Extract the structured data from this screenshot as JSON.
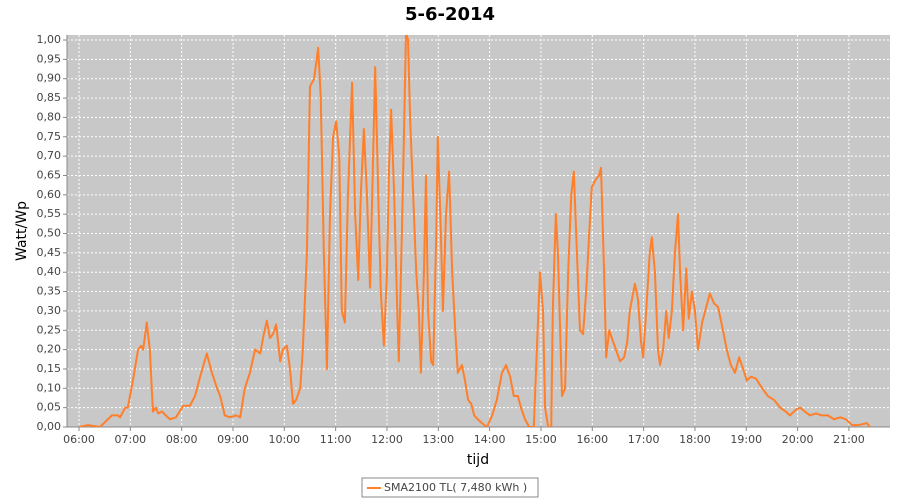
{
  "chart_data": {
    "type": "line",
    "title": "5-6-2014",
    "x_label": "tijd",
    "y_label": "Watt/Wp",
    "grid": true,
    "xlim": [
      5.766,
      21.8
    ],
    "ylim": [
      0,
      1.013
    ],
    "xticks": [
      {
        "value": 6,
        "label": "06:00"
      },
      {
        "value": 7,
        "label": "07:00"
      },
      {
        "value": 8,
        "label": "08:00"
      },
      {
        "value": 9,
        "label": "09:00"
      },
      {
        "value": 10,
        "label": "10:00"
      },
      {
        "value": 11,
        "label": "11:00"
      },
      {
        "value": 12,
        "label": "12:00"
      },
      {
        "value": 13,
        "label": "13:00"
      },
      {
        "value": 14,
        "label": "14:00"
      },
      {
        "value": 15,
        "label": "15:00"
      },
      {
        "value": 16,
        "label": "16:00"
      },
      {
        "value": 17,
        "label": "17:00"
      },
      {
        "value": 18,
        "label": "18:00"
      },
      {
        "value": 19,
        "label": "19:00"
      },
      {
        "value": 20,
        "label": "20:00"
      },
      {
        "value": 21,
        "label": "21:00"
      }
    ],
    "yticks": [
      {
        "value": 0,
        "label": "0,00"
      },
      {
        "value": 0.05,
        "label": "0,05"
      },
      {
        "value": 0.1,
        "label": "0,10"
      },
      {
        "value": 0.15,
        "label": "0,15"
      },
      {
        "value": 0.2,
        "label": "0,20"
      },
      {
        "value": 0.25,
        "label": "0,25"
      },
      {
        "value": 0.3,
        "label": "0,30"
      },
      {
        "value": 0.35,
        "label": "0,35"
      },
      {
        "value": 0.4,
        "label": "0,40"
      },
      {
        "value": 0.45,
        "label": "0,45"
      },
      {
        "value": 0.5,
        "label": "0,50"
      },
      {
        "value": 0.55,
        "label": "0,55"
      },
      {
        "value": 0.6,
        "label": "0,60"
      },
      {
        "value": 0.65,
        "label": "0,65"
      },
      {
        "value": 0.7,
        "label": "0,70"
      },
      {
        "value": 0.75,
        "label": "0,75"
      },
      {
        "value": 0.8,
        "label": "0,80"
      },
      {
        "value": 0.85,
        "label": "0,85"
      },
      {
        "value": 0.9,
        "label": "0,90"
      },
      {
        "value": 0.95,
        "label": "0,95"
      },
      {
        "value": 1,
        "label": "1,00"
      }
    ],
    "x": [
      6.0,
      6.18,
      6.41,
      6.64,
      6.76,
      6.8,
      6.9,
      6.95,
      7.05,
      7.15,
      7.21,
      7.25,
      7.32,
      7.38,
      7.44,
      7.5,
      7.54,
      7.62,
      7.69,
      7.77,
      7.89,
      8.03,
      8.16,
      8.26,
      8.36,
      8.49,
      8.59,
      8.69,
      8.75,
      8.84,
      8.94,
      9.06,
      9.14,
      9.23,
      9.33,
      9.43,
      9.53,
      9.6,
      9.66,
      9.72,
      9.78,
      9.84,
      9.92,
      9.97,
      10.05,
      10.11,
      10.17,
      10.23,
      10.31,
      10.36,
      10.44,
      10.5,
      10.58,
      10.66,
      10.71,
      10.77,
      10.83,
      10.89,
      10.95,
      11.01,
      11.07,
      11.12,
      11.18,
      11.24,
      11.32,
      11.38,
      11.44,
      11.49,
      11.55,
      11.61,
      11.67,
      11.73,
      11.77,
      11.83,
      11.88,
      11.94,
      12.0,
      12.04,
      12.08,
      12.14,
      12.2,
      12.23,
      12.29,
      12.33,
      12.37,
      12.41,
      12.45,
      12.51,
      12.57,
      12.62,
      12.66,
      12.72,
      12.76,
      12.8,
      12.86,
      12.9,
      12.96,
      12.99,
      13.05,
      13.09,
      13.15,
      13.21,
      13.27,
      13.33,
      13.38,
      13.46,
      13.52,
      13.58,
      13.64,
      13.7,
      13.77,
      13.85,
      13.95,
      14.05,
      14.14,
      14.24,
      14.32,
      14.4,
      14.47,
      14.55,
      14.61,
      14.69,
      14.77,
      14.86,
      14.92,
      14.98,
      15.04,
      15.08,
      15.14,
      15.2,
      15.23,
      15.29,
      15.33,
      15.41,
      15.47,
      15.53,
      15.59,
      15.64,
      15.7,
      15.76,
      15.82,
      15.88,
      15.94,
      15.99,
      16.07,
      16.13,
      16.17,
      16.23,
      16.27,
      16.33,
      16.38,
      16.46,
      16.54,
      16.62,
      16.68,
      16.73,
      16.83,
      16.89,
      16.95,
      16.99,
      17.05,
      17.12,
      17.16,
      17.22,
      17.28,
      17.32,
      17.38,
      17.44,
      17.49,
      17.55,
      17.61,
      17.67,
      17.71,
      17.77,
      17.83,
      17.88,
      17.94,
      18.0,
      18.06,
      18.14,
      18.2,
      18.29,
      18.37,
      18.45,
      18.53,
      18.62,
      18.7,
      18.78,
      18.86,
      18.94,
      19.01,
      19.09,
      19.19,
      19.31,
      19.42,
      19.54,
      19.66,
      19.77,
      19.85,
      19.97,
      20.05,
      20.14,
      20.24,
      20.36,
      20.47,
      20.59,
      20.71,
      20.83,
      20.94,
      21.06,
      21.18,
      21.29,
      21.35,
      21.41
    ],
    "series": [
      {
        "name": "SMA2100 TL( 7,480 kWh )",
        "color": "#ff7f2a",
        "values": [
          0,
          0.005,
          0,
          0.03,
          0.03,
          0.025,
          0.05,
          0.05,
          0.12,
          0.2,
          0.21,
          0.2,
          0.27,
          0.2,
          0.04,
          0.05,
          0.035,
          0.04,
          0.03,
          0.02,
          0.025,
          0.055,
          0.055,
          0.08,
          0.13,
          0.19,
          0.14,
          0.1,
          0.08,
          0.03,
          0.025,
          0.03,
          0.025,
          0.1,
          0.14,
          0.2,
          0.19,
          0.24,
          0.275,
          0.23,
          0.24,
          0.265,
          0.17,
          0.2,
          0.21,
          0.15,
          0.06,
          0.07,
          0.1,
          0.2,
          0.45,
          0.88,
          0.9,
          0.98,
          0.85,
          0.45,
          0.15,
          0.55,
          0.75,
          0.79,
          0.7,
          0.3,
          0.27,
          0.6,
          0.89,
          0.55,
          0.38,
          0.6,
          0.77,
          0.6,
          0.36,
          0.7,
          0.93,
          0.6,
          0.35,
          0.21,
          0.4,
          0.67,
          0.82,
          0.6,
          0.3,
          0.17,
          0.5,
          0.75,
          1.02,
          1.0,
          0.8,
          0.6,
          0.4,
          0.3,
          0.14,
          0.4,
          0.65,
          0.3,
          0.17,
          0.16,
          0.5,
          0.75,
          0.5,
          0.3,
          0.55,
          0.66,
          0.4,
          0.25,
          0.14,
          0.16,
          0.12,
          0.07,
          0.06,
          0.03,
          0.02,
          0.01,
          0,
          0.03,
          0.07,
          0.14,
          0.16,
          0.13,
          0.08,
          0.08,
          0.05,
          0.02,
          0,
          0,
          0.2,
          0.4,
          0.3,
          0.05,
          0,
          0,
          0.3,
          0.55,
          0.45,
          0.08,
          0.1,
          0.4,
          0.6,
          0.66,
          0.45,
          0.25,
          0.24,
          0.35,
          0.5,
          0.62,
          0.64,
          0.65,
          0.67,
          0.4,
          0.18,
          0.25,
          0.23,
          0.2,
          0.17,
          0.18,
          0.22,
          0.3,
          0.37,
          0.33,
          0.22,
          0.18,
          0.3,
          0.45,
          0.49,
          0.4,
          0.2,
          0.16,
          0.2,
          0.3,
          0.23,
          0.3,
          0.45,
          0.55,
          0.4,
          0.25,
          0.41,
          0.28,
          0.35,
          0.3,
          0.2,
          0.27,
          0.3,
          0.345,
          0.32,
          0.31,
          0.26,
          0.2,
          0.16,
          0.14,
          0.18,
          0.15,
          0.12,
          0.13,
          0.125,
          0.1,
          0.08,
          0.07,
          0.05,
          0.04,
          0.03,
          0.045,
          0.05,
          0.04,
          0.03,
          0.035,
          0.03,
          0.03,
          0.02,
          0.025,
          0.02,
          0.005,
          0.005,
          0.008,
          0.01,
          0
        ]
      }
    ]
  }
}
